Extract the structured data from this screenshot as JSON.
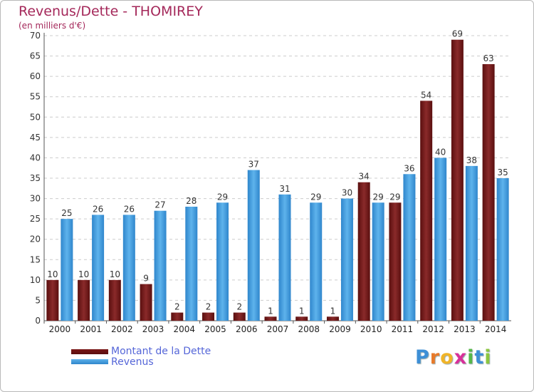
{
  "chart_data": {
    "type": "bar",
    "title": "Revenus/Dette - THOMIREY",
    "subtitle": "(en milliers d'€)",
    "categories": [
      "2000",
      "2001",
      "2002",
      "2003",
      "2004",
      "2005",
      "2006",
      "2007",
      "2008",
      "2009",
      "2010",
      "2011",
      "2012",
      "2013",
      "2014"
    ],
    "series": [
      {
        "name": "Montant de la Dette",
        "color": "#6e1414",
        "values": [
          10,
          10,
          10,
          9,
          2,
          2,
          2,
          1,
          1,
          1,
          34,
          29,
          54,
          69,
          63
        ]
      },
      {
        "name": "Revenus",
        "color": "#3f98dd",
        "values": [
          25,
          26,
          26,
          27,
          28,
          29,
          37,
          31,
          29,
          30,
          29,
          36,
          40,
          38,
          35
        ]
      }
    ],
    "ylim": [
      0,
      70
    ],
    "yticks": [
      0,
      5,
      10,
      15,
      20,
      25,
      30,
      35,
      40,
      45,
      50,
      55,
      60,
      65,
      70
    ],
    "grid": true,
    "legend_position": "bottom-left"
  },
  "logo": {
    "letters": [
      "P",
      "r",
      "o",
      "x",
      "i",
      "t",
      "i"
    ]
  }
}
